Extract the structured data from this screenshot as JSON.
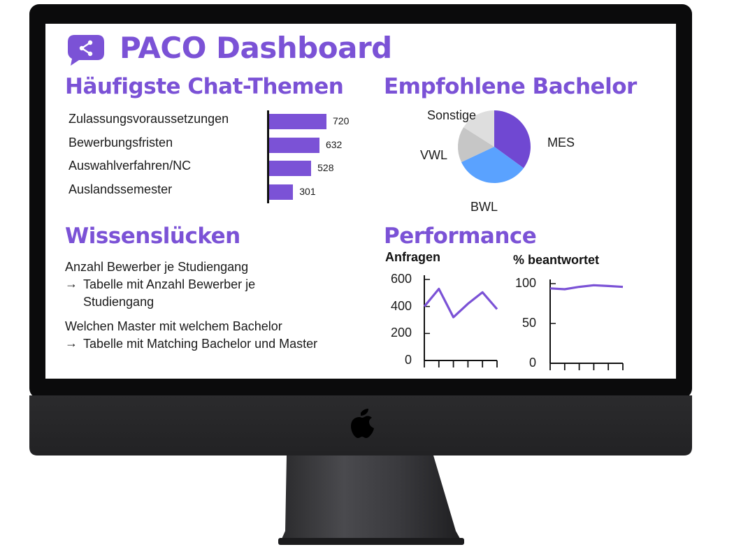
{
  "dashboard": {
    "title": "PACO Dashboard",
    "logo_icon": "chat-share-icon",
    "accent_color": "#7b52d6"
  },
  "sections": {
    "chat_topics": "Häufigste Chat-Themen",
    "recommended": "Empfohlene Bachelor",
    "knowledge_gaps": "Wissenslücken",
    "performance": "Performance"
  },
  "knowledge_gaps": [
    {
      "question": "Anzahl Bewerber je Studiengang",
      "answer": "Tabelle mit Anzahl Bewerber je Studiengang"
    },
    {
      "question": "Welchen Master mit welchem Bachelor",
      "answer": "Tabelle mit Matching Bachelor und Master"
    }
  ],
  "arrow": "→",
  "chart_data": [
    {
      "type": "bar",
      "orientation": "horizontal",
      "categories": [
        "Zulassungsvoraussetzungen",
        "Bewerbungsfristen",
        "Auswahlverfahren/NC",
        "Auslandssemester"
      ],
      "values": [
        720,
        632,
        528,
        301
      ],
      "color": "#7b52d6"
    },
    {
      "type": "pie",
      "labels": [
        "MES",
        "BWL",
        "VWL",
        "Sonstige"
      ],
      "values": [
        35,
        33,
        16,
        16
      ],
      "colors": [
        "#7048d2",
        "#5aa2ff",
        "#c6c6c6",
        "#dedede"
      ]
    },
    {
      "type": "line",
      "title": "Anfragen",
      "y_ticks": [
        "600",
        "400",
        "200",
        "0"
      ],
      "ylim": [
        0,
        600
      ],
      "values": [
        400,
        530,
        320,
        420,
        505,
        380
      ],
      "color": "#7b52d6"
    },
    {
      "type": "line",
      "title": "% beantwortet",
      "y_ticks": [
        "100",
        "50",
        "0"
      ],
      "ylim": [
        0,
        100
      ],
      "values": [
        94,
        93,
        96,
        98,
        97,
        96
      ],
      "color": "#7b52d6"
    }
  ]
}
